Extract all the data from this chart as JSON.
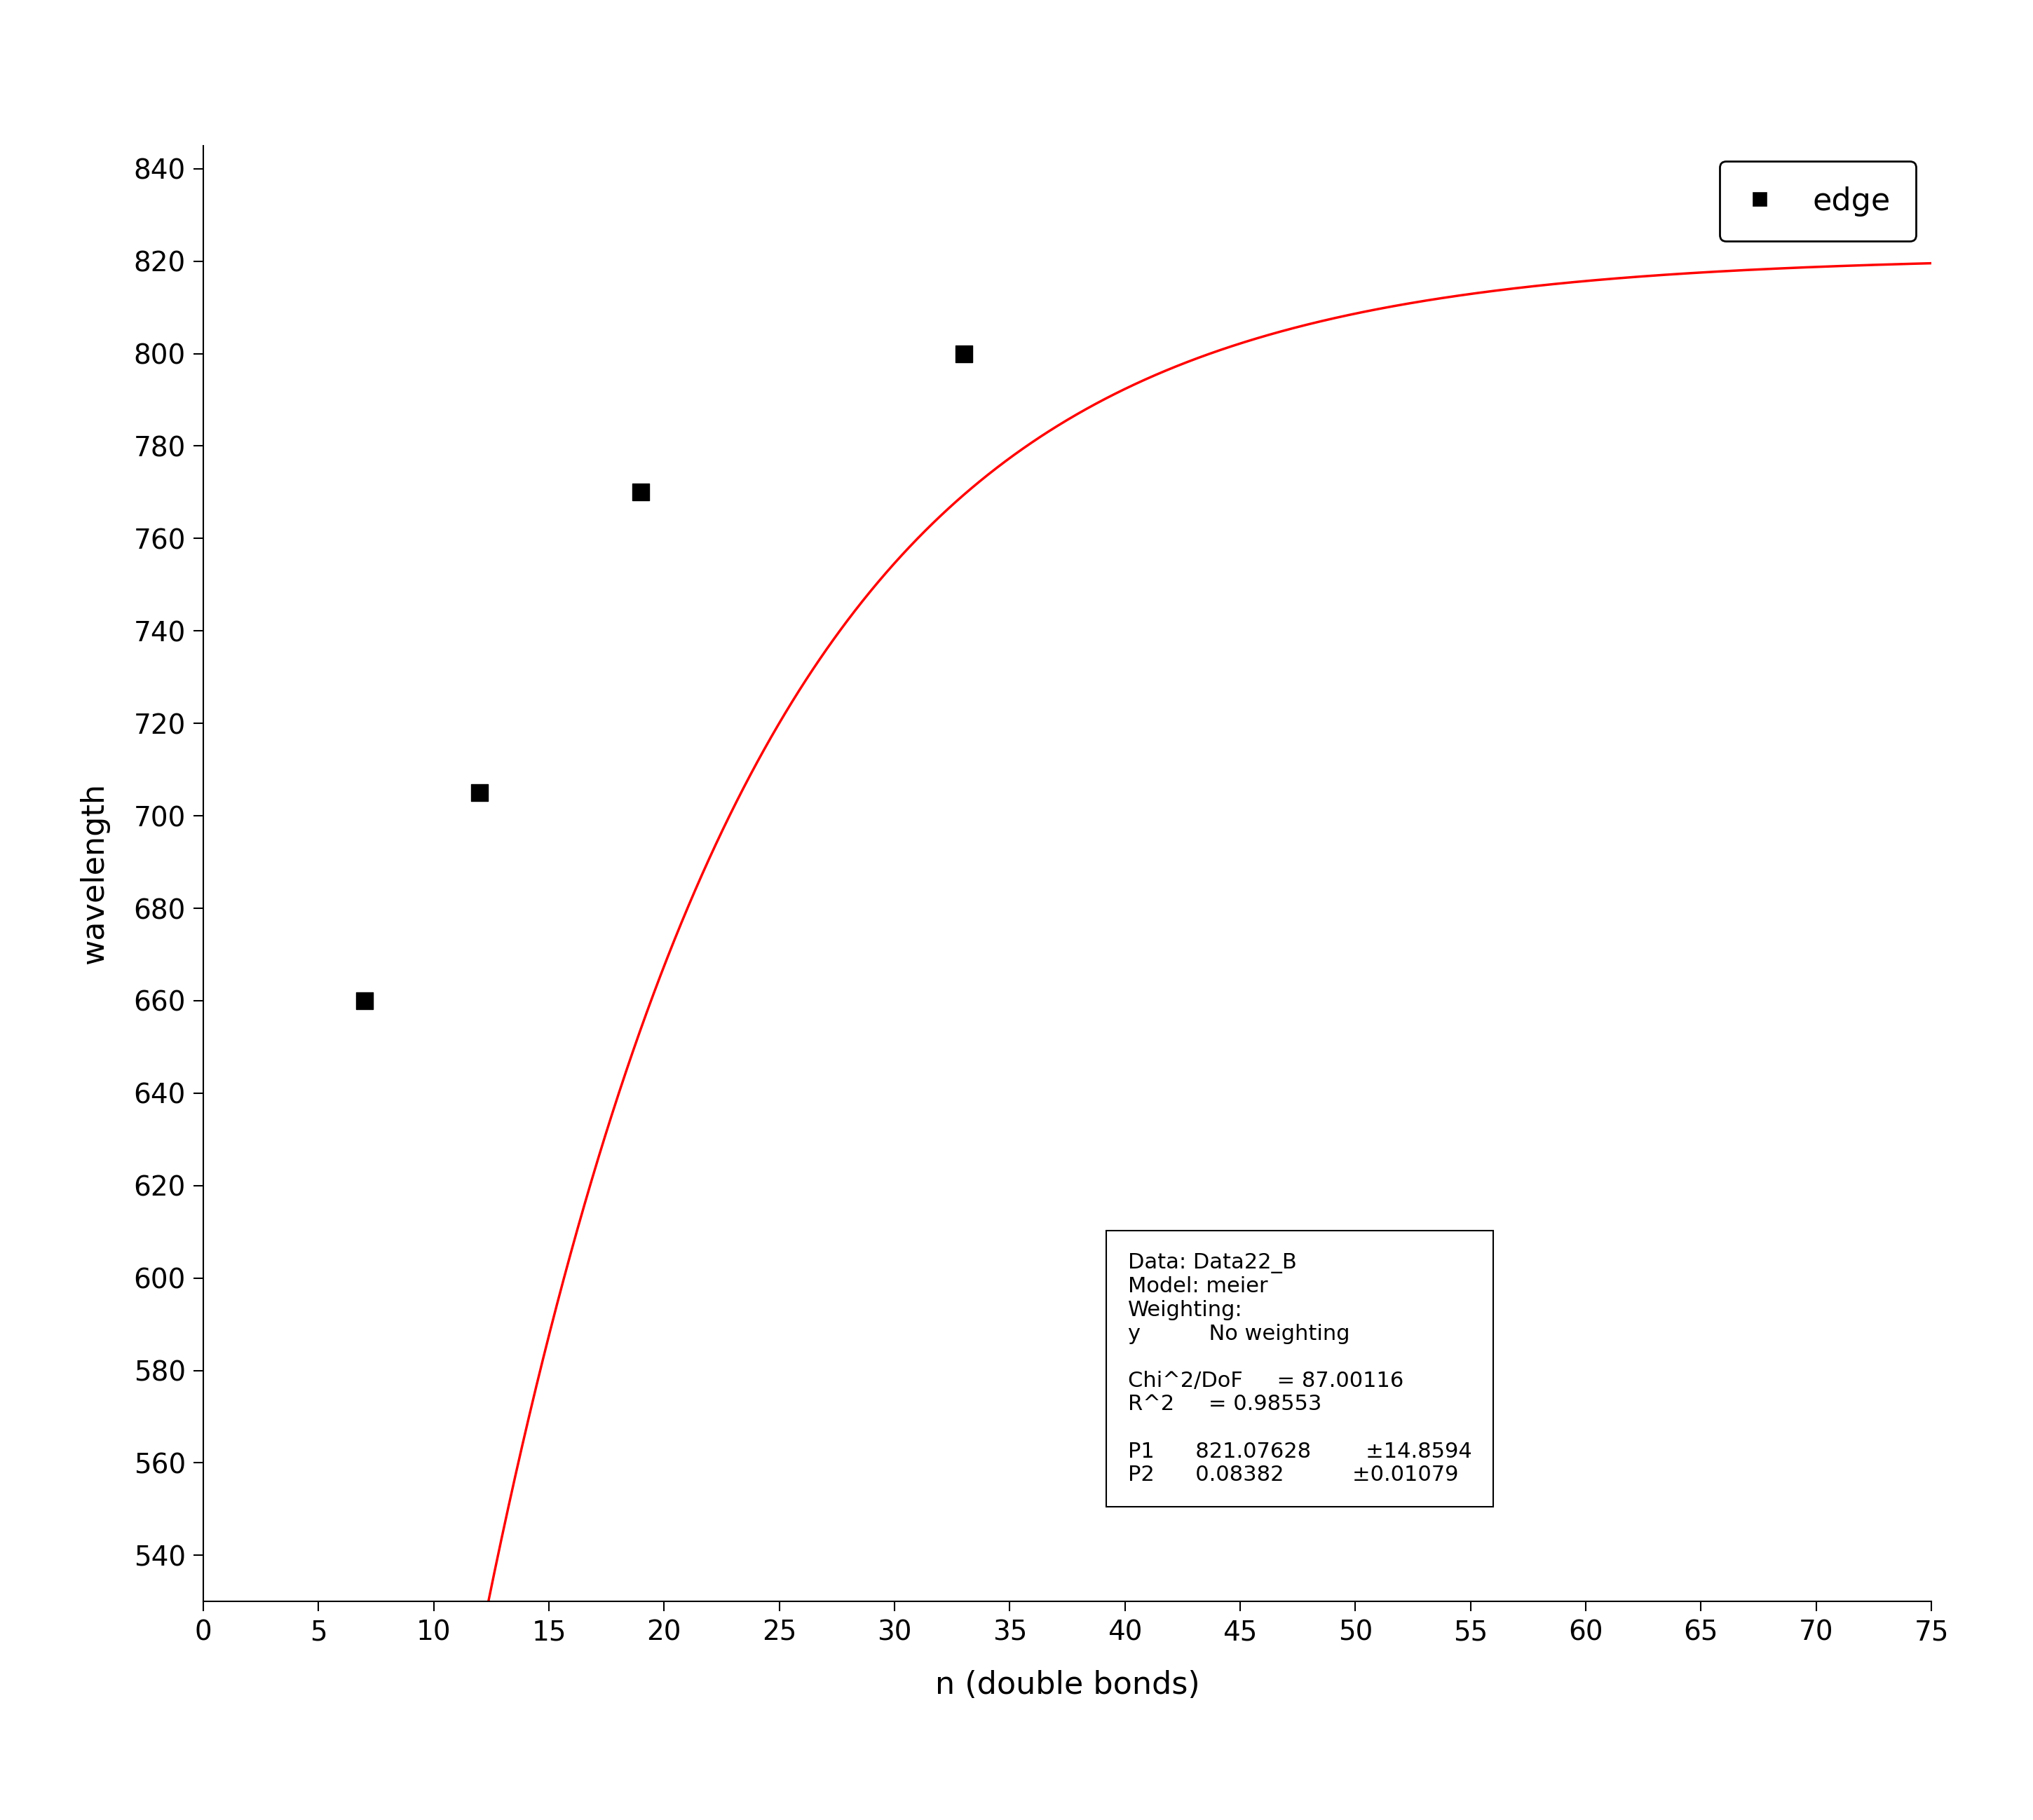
{
  "data_x": [
    7,
    12,
    19,
    33
  ],
  "data_y": [
    660,
    705,
    770,
    800
  ],
  "P1": 821.07628,
  "P2": 0.08382,
  "xlim": [
    0,
    75
  ],
  "ylim": [
    530,
    845
  ],
  "xticks": [
    0,
    5,
    10,
    15,
    20,
    25,
    30,
    35,
    40,
    45,
    50,
    55,
    60,
    65,
    70,
    75
  ],
  "yticks": [
    540,
    560,
    580,
    600,
    620,
    640,
    660,
    680,
    700,
    720,
    740,
    760,
    780,
    800,
    820,
    840
  ],
  "xlabel": "n (double bonds)",
  "ylabel": "wavelength",
  "legend_label": "edge",
  "fit_color": "#ff0000",
  "marker_color": "#000000",
  "annotation_lines": [
    "Data: Data22_B",
    "Model: meier",
    "Weighting:",
    "y          No weighting",
    "",
    "Chi^2/DoF     = 87.00116",
    "R^2     = 0.98553",
    "",
    "P1      821.07628        ±14.8594",
    "P2      0.08382          ±0.01079"
  ],
  "background_color": "#ffffff",
  "label_fontsize": 32,
  "tick_fontsize": 28,
  "legend_fontsize": 32,
  "annotation_fontsize": 22,
  "marker_size": 300,
  "line_width": 2.5
}
